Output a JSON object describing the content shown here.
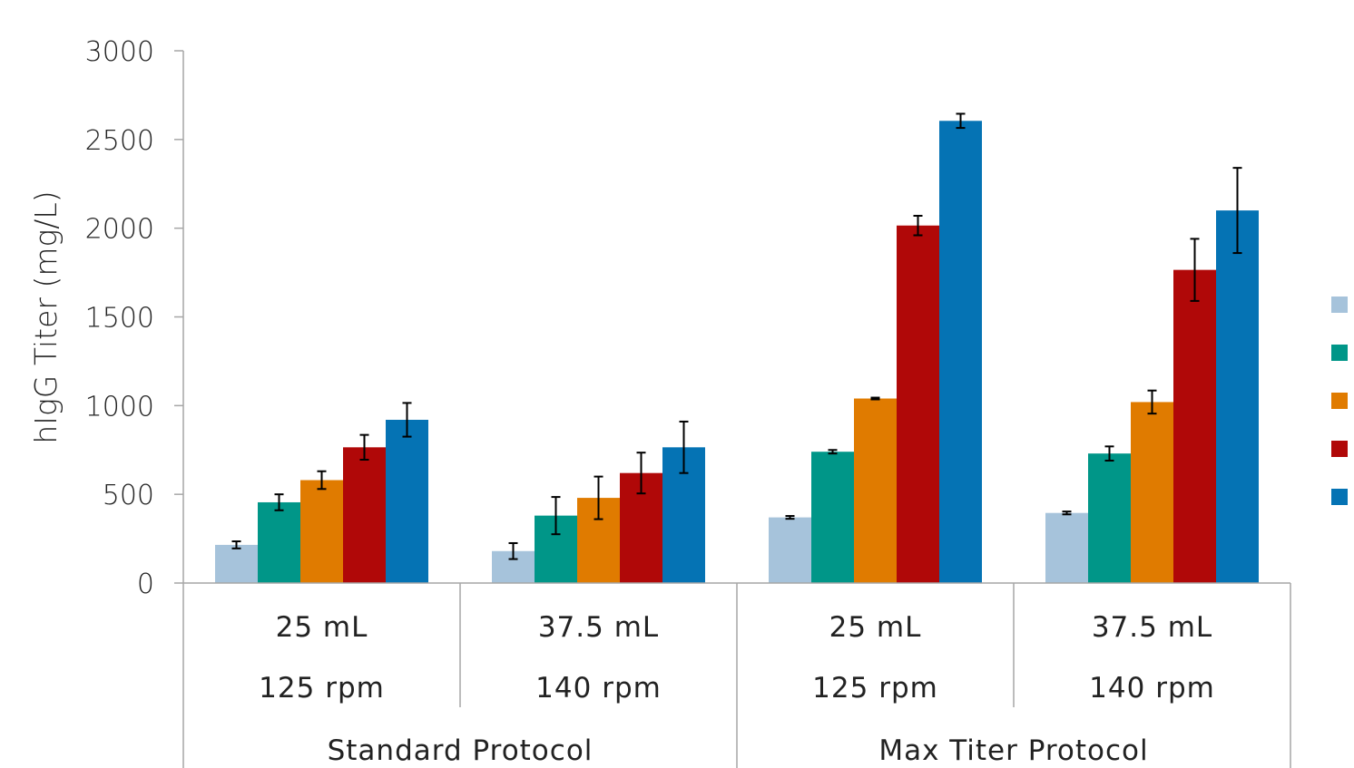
{
  "chart_data": {
    "type": "bar",
    "title": "",
    "ylabel": "hIgG Titer (mg/L)",
    "xlabel": "",
    "ylim": [
      0,
      3000
    ],
    "yticks": [
      "0",
      "500",
      "1000",
      "1500",
      "2000",
      "2500",
      "3000"
    ],
    "grid": false,
    "legend_position": "right",
    "legend_labels_visible": false,
    "category_levels": {
      "volume": [
        "25 mL",
        "37.5 mL",
        "25 mL",
        "37.5 mL"
      ],
      "speed": [
        "125 rpm",
        "140 rpm",
        "125 rpm",
        "140 rpm"
      ],
      "protocol": [
        "Standard Protocol",
        "Max Titer Protocol"
      ]
    },
    "series": [
      {
        "color": "#a6c3db",
        "values": [
          215,
          180,
          370,
          395
        ],
        "errors": [
          20,
          45,
          8,
          8
        ]
      },
      {
        "color": "#009688",
        "values": [
          455,
          380,
          740,
          730
        ],
        "errors": [
          45,
          105,
          10,
          40
        ]
      },
      {
        "color": "#e07b00",
        "values": [
          580,
          480,
          1040,
          1020
        ],
        "errors": [
          50,
          120,
          5,
          65
        ]
      },
      {
        "color": "#b00808",
        "values": [
          765,
          620,
          2015,
          1765
        ],
        "errors": [
          70,
          115,
          55,
          175
        ]
      },
      {
        "color": "#0573b4",
        "values": [
          920,
          765,
          2605,
          2100
        ],
        "errors": [
          95,
          145,
          40,
          240
        ]
      }
    ]
  }
}
